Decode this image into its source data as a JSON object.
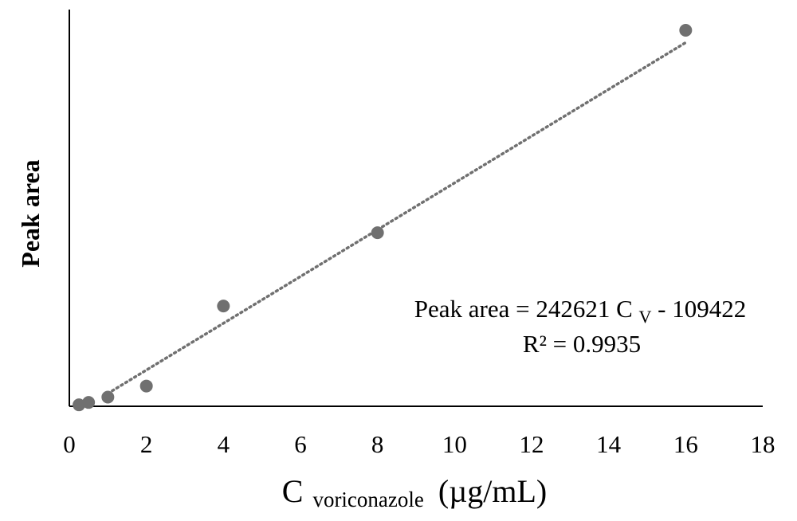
{
  "chart_data": {
    "type": "scatter",
    "ylabel": "Peak area",
    "xlabel": {
      "main": "C",
      "subscript": "voriconazole",
      "unit": "(µg/mL)"
    },
    "x_ticks": [
      "0",
      "2",
      "4",
      "6",
      "8",
      "10",
      "12",
      "14",
      "16",
      "18"
    ],
    "xlim": [
      0,
      18
    ],
    "ylim": [
      0,
      3900000
    ],
    "grid": false,
    "series": [
      {
        "color": "#707070",
        "points": [
          {
            "x": 0.25,
            "y": 15000
          },
          {
            "x": 0.5,
            "y": 40000
          },
          {
            "x": 1,
            "y": 95000
          },
          {
            "x": 2,
            "y": 210000
          },
          {
            "x": 4,
            "y": 1040000
          },
          {
            "x": 8,
            "y": 1800000
          },
          {
            "x": 16,
            "y": 3900000
          }
        ]
      }
    ],
    "trendline": {
      "style": "dotted",
      "color": "#707070",
      "slope": 242621,
      "intercept": -109422,
      "x_range": [
        1,
        16
      ]
    },
    "annotation": {
      "equation_prefix": "Peak area = 242621 C",
      "equation_subscript": "V",
      "equation_suffix": " - 109422",
      "r_squared": "R² = 0.9935"
    }
  }
}
